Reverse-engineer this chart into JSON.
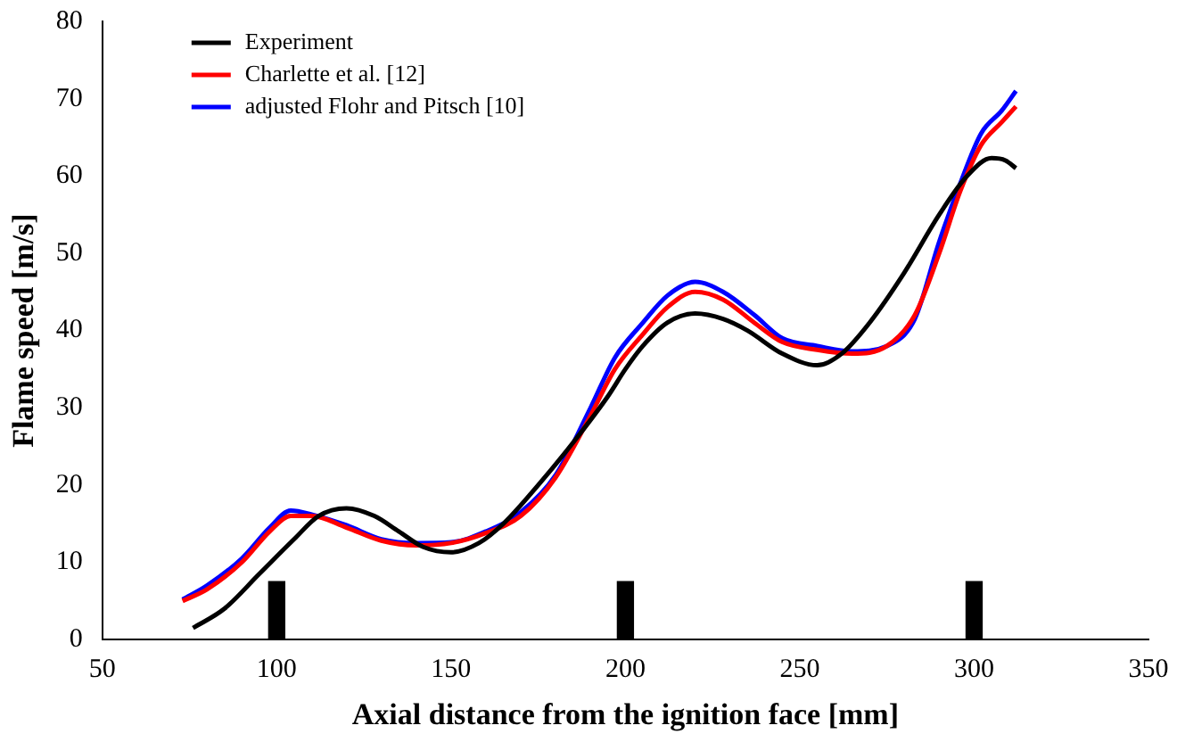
{
  "chart_data": {
    "type": "line",
    "xlabel": "Axial distance from the ignition face [mm]",
    "ylabel": "Flame speed [m/s]",
    "xlim": [
      50,
      350
    ],
    "xticks": [
      50,
      100,
      150,
      200,
      250,
      300,
      350
    ],
    "ylim": [
      0,
      80
    ],
    "yticks": [
      0,
      10,
      20,
      30,
      40,
      50,
      60,
      70,
      80
    ],
    "grid": false,
    "legend": "top left",
    "marker": "none",
    "line_style": "solid",
    "series": [
      {
        "name": "Experiment",
        "color": "#000000",
        "x": [
          76,
          85,
          95,
          105,
          112,
          120,
          128,
          135,
          142,
          150,
          158,
          165,
          175,
          185,
          195,
          200,
          205,
          212,
          220,
          228,
          235,
          245,
          255,
          262,
          270,
          280,
          290,
          298,
          305,
          309,
          312
        ],
        "values": [
          1.5,
          4,
          8.5,
          13,
          16,
          17,
          16,
          14,
          12,
          11.3,
          12.5,
          15,
          20,
          25.5,
          31.5,
          35,
          38,
          41,
          42.2,
          41.5,
          40,
          37,
          35.5,
          37,
          41,
          47.5,
          55,
          60,
          62.3,
          62,
          61
        ]
      },
      {
        "name": "Charlette et al. [12]",
        "color": "#ff0000",
        "x": [
          73,
          80,
          90,
          98,
          104,
          110,
          120,
          130,
          140,
          150,
          160,
          170,
          180,
          190,
          197,
          205,
          212,
          220,
          228,
          237,
          245,
          255,
          265,
          275,
          283,
          290,
          296,
          302,
          308,
          312
        ],
        "values": [
          5,
          6.5,
          10,
          14,
          16,
          16,
          14.5,
          12.8,
          12.2,
          12.5,
          13.8,
          16,
          21,
          29,
          35,
          39.5,
          43,
          45,
          44,
          41,
          38.5,
          37.5,
          37,
          38,
          42,
          50,
          58,
          64,
          67,
          69
        ]
      },
      {
        "name": "adjusted Flohr and Pitsch [10]",
        "color": "#0000ff",
        "x": [
          73,
          80,
          90,
          98,
          104,
          110,
          120,
          130,
          140,
          150,
          160,
          170,
          180,
          190,
          197,
          205,
          212,
          220,
          228,
          237,
          245,
          255,
          265,
          275,
          283,
          290,
          296,
          302,
          308,
          312
        ],
        "values": [
          5.2,
          7,
          10.5,
          14.5,
          16.7,
          16.2,
          14.8,
          13,
          12.5,
          12.6,
          14,
          16.5,
          21.3,
          30,
          36.5,
          41,
          44.5,
          46.3,
          45,
          42,
          39,
          38,
          37.3,
          38,
          41.5,
          51.5,
          59,
          65.5,
          68.5,
          71
        ]
      },
      {
        "type": "bar",
        "color": "#000000",
        "x": [
          100,
          200,
          300
        ],
        "values": [
          7.5,
          7.5,
          7.5
        ]
      }
    ]
  }
}
